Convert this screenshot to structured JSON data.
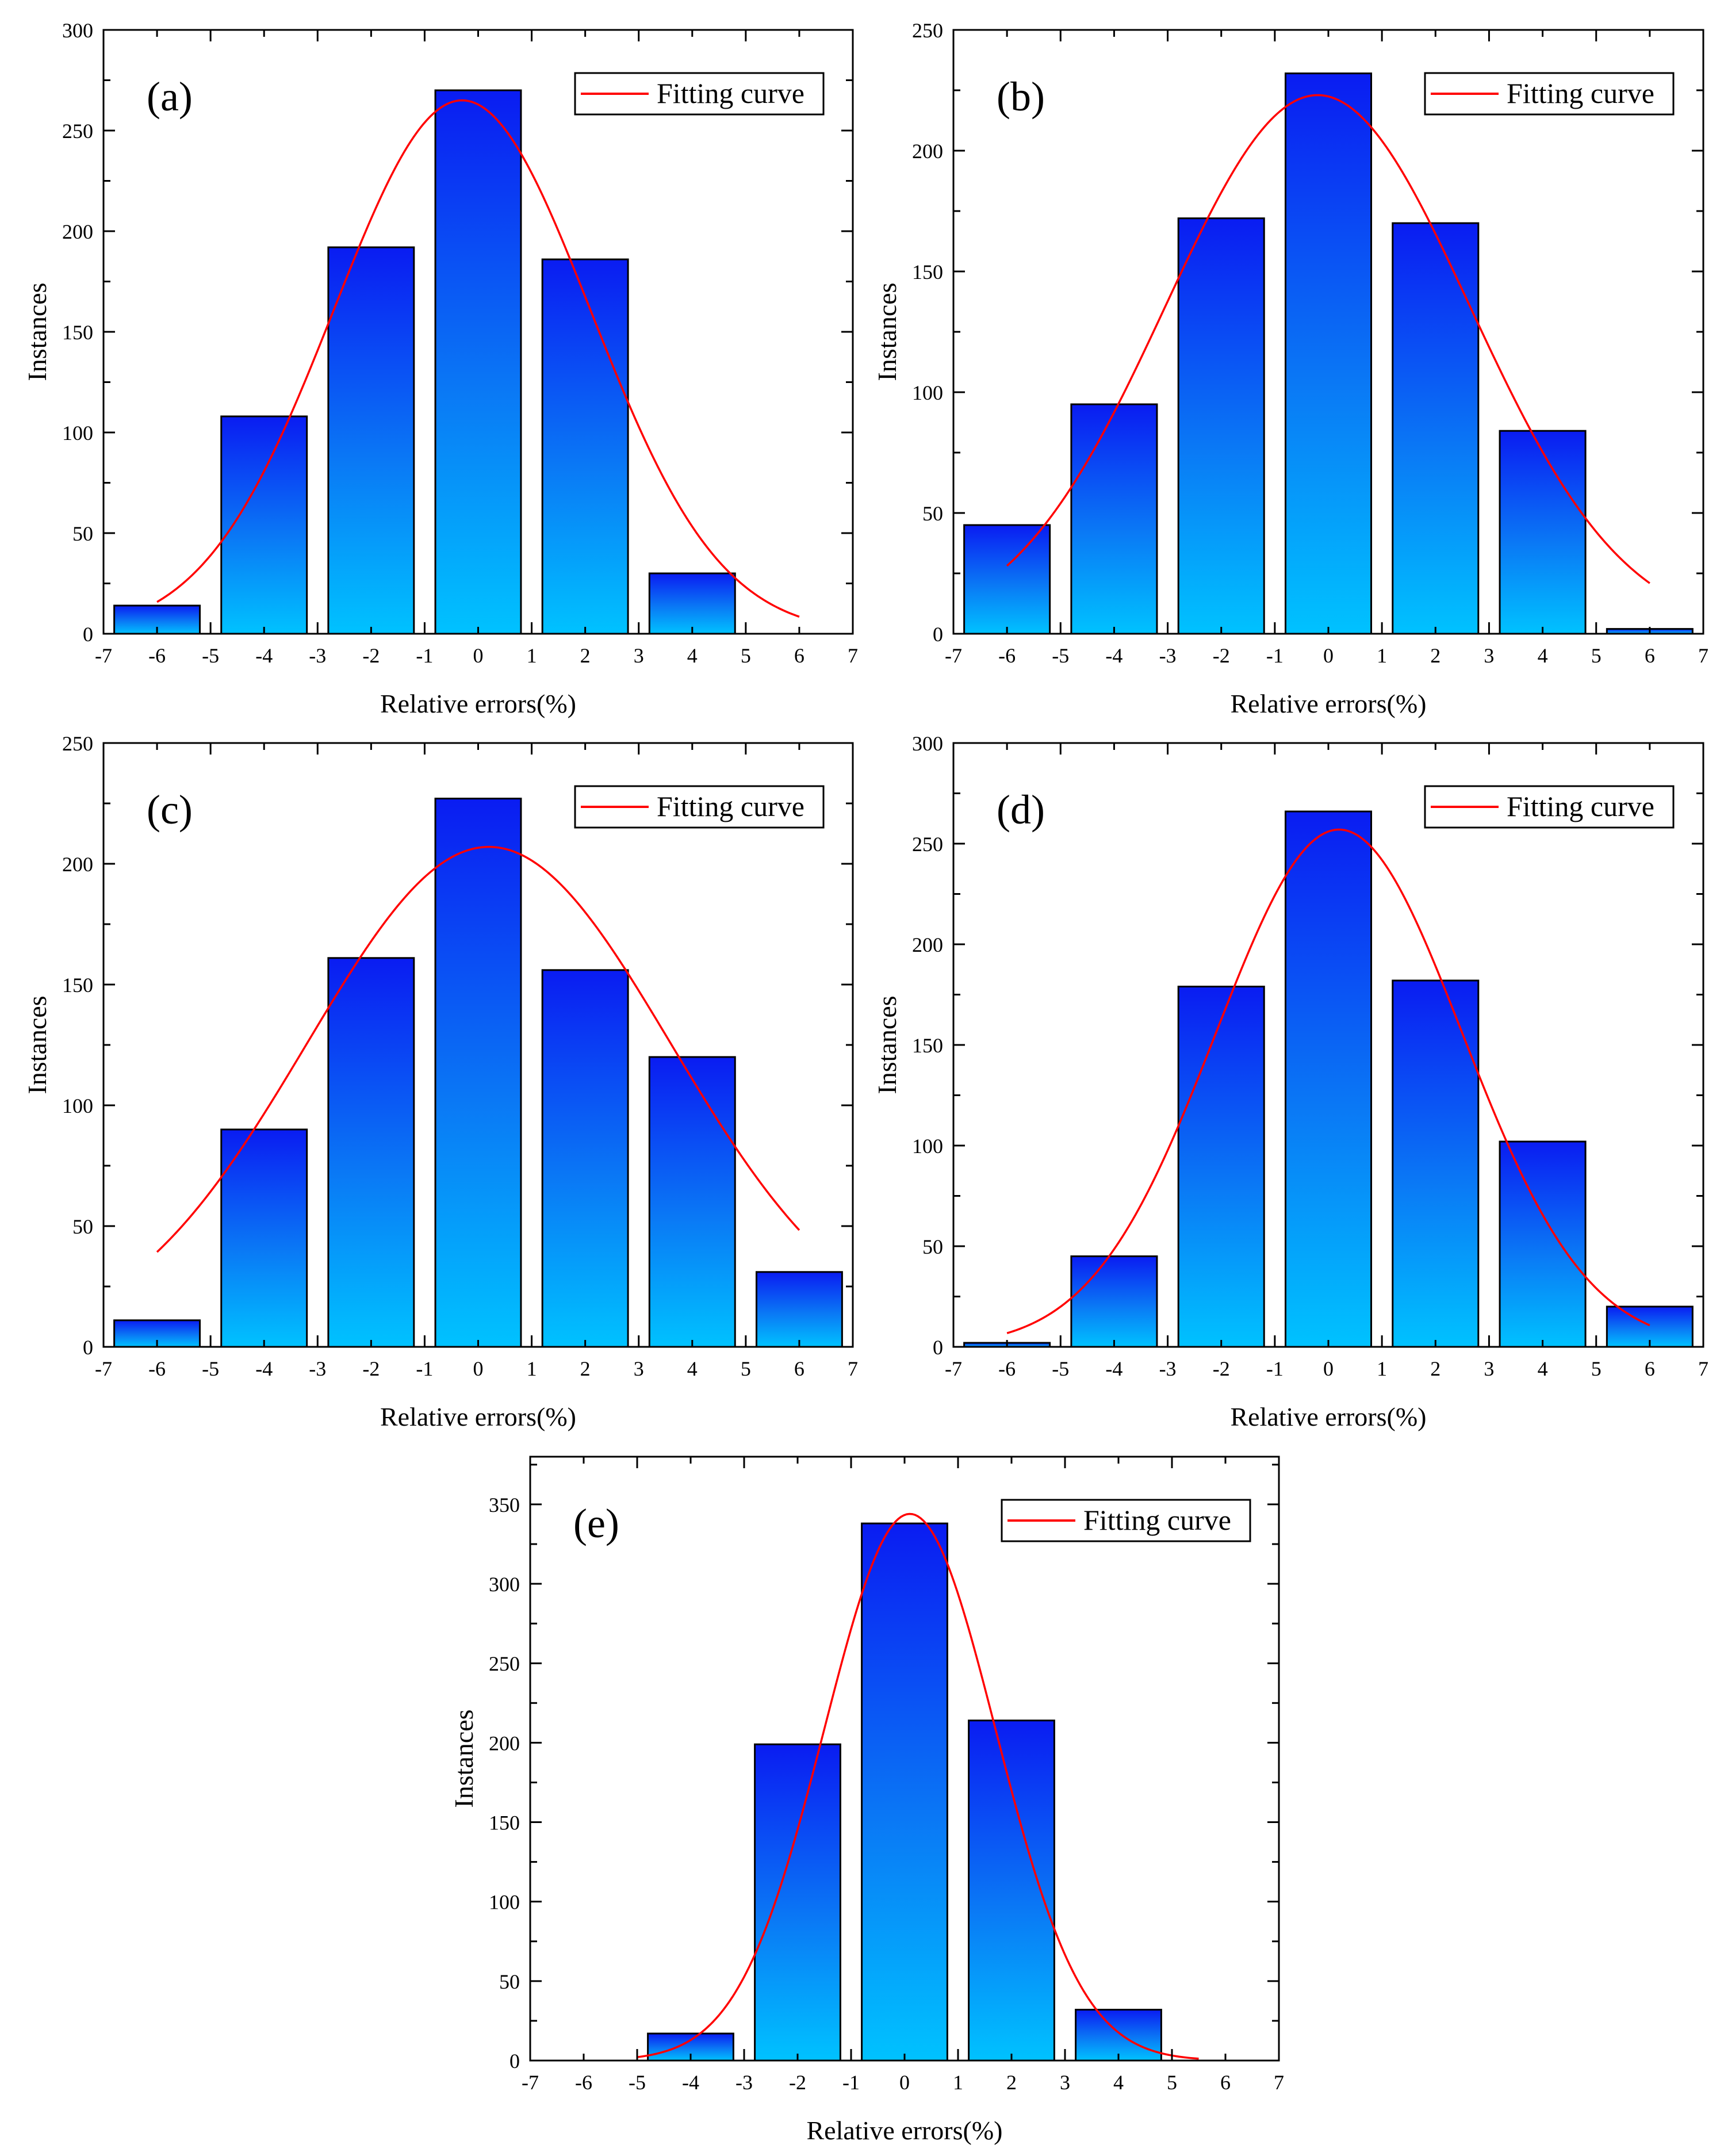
{
  "chart_data": [
    {
      "type": "bar",
      "panel_label": "(a)",
      "legend": "Fitting curve",
      "xlabel": "Relative errors(%)",
      "ylabel": "Instances",
      "xlim": [
        -7,
        7
      ],
      "ylim": [
        0,
        300
      ],
      "xticks": [
        -7,
        -6,
        -5,
        -4,
        -3,
        -2,
        -1,
        0,
        1,
        2,
        3,
        4,
        5,
        6,
        7
      ],
      "yticks": [
        0,
        50,
        100,
        150,
        200,
        250,
        300
      ],
      "categories": [
        -6,
        -4,
        -2,
        0,
        2,
        4,
        6
      ],
      "values": [
        14,
        108,
        192,
        270,
        186,
        30,
        0
      ],
      "fit": {
        "amplitude": 265,
        "mean": -0.3,
        "sigma": 2.4,
        "x_start": -6,
        "x_end": 6
      }
    },
    {
      "type": "bar",
      "panel_label": "(b)",
      "legend": "Fitting curve",
      "xlabel": "Relative errors(%)",
      "ylabel": "Instances",
      "xlim": [
        -7,
        7
      ],
      "ylim": [
        0,
        250
      ],
      "xticks": [
        -7,
        -6,
        -5,
        -4,
        -3,
        -2,
        -1,
        0,
        1,
        2,
        3,
        4,
        5,
        6,
        7
      ],
      "yticks": [
        0,
        50,
        100,
        150,
        200,
        250
      ],
      "categories": [
        -6,
        -4,
        -2,
        0,
        2,
        4,
        6
      ],
      "values": [
        45,
        95,
        172,
        232,
        170,
        84,
        2
      ],
      "fit": {
        "amplitude": 223,
        "mean": -0.2,
        "sigma": 2.85,
        "x_start": -6,
        "x_end": 6
      }
    },
    {
      "type": "bar",
      "panel_label": "(c)",
      "legend": "Fitting curve",
      "xlabel": "Relative errors(%)",
      "ylabel": "Instances",
      "xlim": [
        -7,
        7
      ],
      "ylim": [
        0,
        250
      ],
      "xticks": [
        -7,
        -6,
        -5,
        -4,
        -3,
        -2,
        -1,
        0,
        1,
        2,
        3,
        4,
        5,
        6,
        7
      ],
      "yticks": [
        0,
        50,
        100,
        150,
        200,
        250
      ],
      "categories": [
        -6,
        -4,
        -2,
        0,
        2,
        4,
        6
      ],
      "values": [
        11,
        90,
        161,
        227,
        156,
        120,
        31
      ],
      "fit": {
        "amplitude": 207,
        "mean": 0.2,
        "sigma": 3.4,
        "x_start": -6,
        "x_end": 6
      }
    },
    {
      "type": "bar",
      "panel_label": "(d)",
      "legend": "Fitting curve",
      "xlabel": "Relative errors(%)",
      "ylabel": "Instances",
      "xlim": [
        -7,
        7
      ],
      "ylim": [
        0,
        300
      ],
      "xticks": [
        -7,
        -6,
        -5,
        -4,
        -3,
        -2,
        -1,
        0,
        1,
        2,
        3,
        4,
        5,
        6,
        7
      ],
      "yticks": [
        0,
        50,
        100,
        150,
        200,
        250,
        300
      ],
      "categories": [
        -6,
        -4,
        -2,
        0,
        2,
        4,
        6
      ],
      "values": [
        2,
        45,
        179,
        266,
        182,
        102,
        20
      ],
      "fit": {
        "amplitude": 257,
        "mean": 0.2,
        "sigma": 2.3,
        "x_start": -6,
        "x_end": 6
      }
    },
    {
      "type": "bar",
      "panel_label": "(e)",
      "legend": "Fitting curve",
      "xlabel": "Relative errors(%)",
      "ylabel": "Instances",
      "xlim": [
        -7,
        7
      ],
      "ylim": [
        0,
        380
      ],
      "xticks": [
        -7,
        -6,
        -5,
        -4,
        -3,
        -2,
        -1,
        0,
        1,
        2,
        3,
        4,
        5,
        6,
        7
      ],
      "yticks": [
        0,
        50,
        100,
        150,
        200,
        250,
        300,
        350
      ],
      "categories": [
        -6,
        -4,
        -2,
        0,
        2,
        4,
        6
      ],
      "values": [
        0,
        17,
        199,
        338,
        214,
        32,
        0
      ],
      "fit": {
        "amplitude": 344,
        "mean": 0.1,
        "sigma": 1.6,
        "x_start": -5,
        "x_end": 5.5
      }
    }
  ]
}
